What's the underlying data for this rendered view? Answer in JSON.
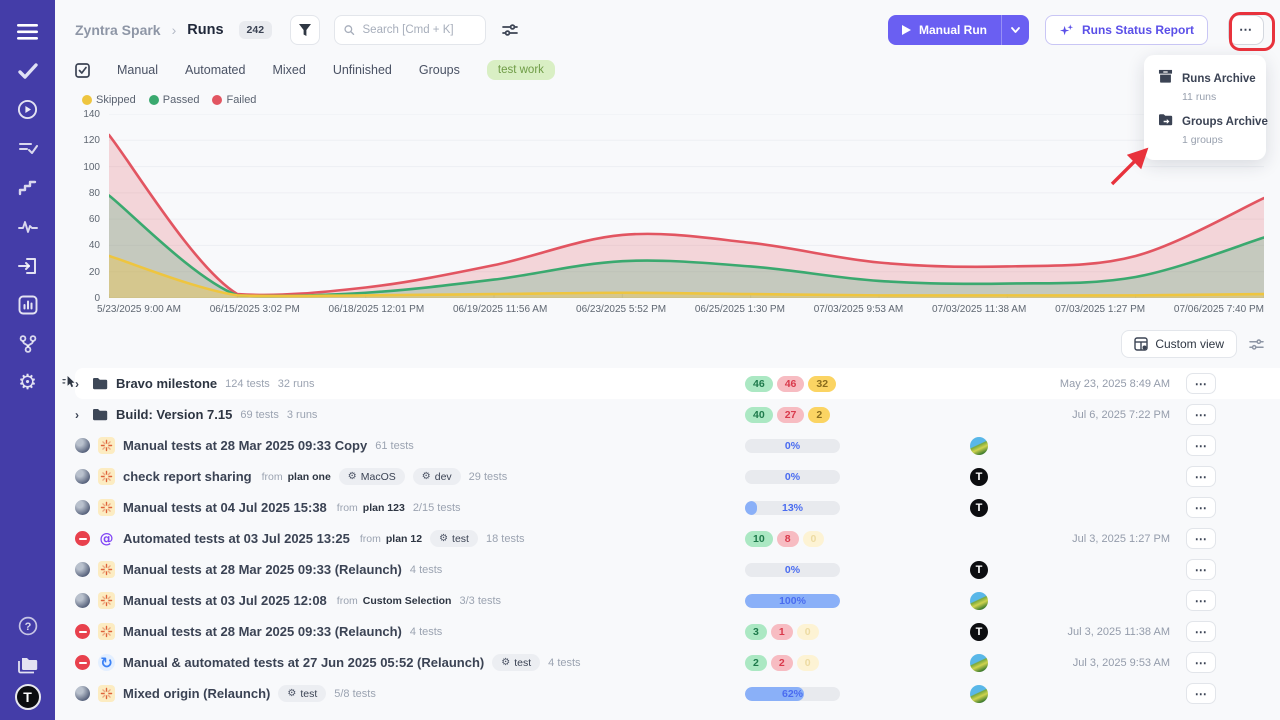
{
  "sidebar": {
    "icons": [
      "menu",
      "check",
      "play-circle",
      "list-check",
      "steps",
      "pulse",
      "import",
      "analytics",
      "branch",
      "settings",
      "help",
      "projects"
    ],
    "avatar_letter": "T"
  },
  "header": {
    "breadcrumb_project": "Zyntra Spark",
    "breadcrumb_separator": "›",
    "breadcrumb_page": "Runs",
    "count_badge": "242",
    "search_placeholder": "Search [Cmd + K]",
    "manual_run_label": "Manual Run",
    "runs_status_report_label": "Runs Status Report",
    "more_label": "⋯"
  },
  "dropdown": {
    "items": [
      {
        "icon": "archive-icon",
        "label": "Runs Archive",
        "sublabel": "11 runs"
      },
      {
        "icon": "folder-move-icon",
        "label": "Groups Archive",
        "sublabel": "1 groups"
      }
    ]
  },
  "tabs": [
    "Manual",
    "Automated",
    "Mixed",
    "Unfinished",
    "Groups"
  ],
  "tag_filter": "test work",
  "annotation": {
    "color": "#e8323c"
  },
  "chart_data": {
    "type": "area",
    "title": "",
    "legend_position": "top-left",
    "grid": "horizontal",
    "ylim": [
      0,
      140
    ],
    "y_ticks": [
      0,
      20,
      40,
      60,
      80,
      100,
      120,
      140
    ],
    "x_ticks": [
      "5/23/2025 9:00 AM",
      "06/15/2025 3:02 PM",
      "06/18/2025 12:01 PM",
      "06/19/2025 11:56 AM",
      "06/23/2025 5:52 PM",
      "06/25/2025 1:30 PM",
      "07/03/2025 9:53 AM",
      "07/03/2025 11:38 AM",
      "07/03/2025 1:27 PM",
      "07/06/2025 7:40 PM"
    ],
    "series": [
      {
        "name": "Skipped",
        "color": "#eec53f",
        "fill": "rgba(238,197,63,0.38)",
        "values": [
          32,
          2,
          2,
          3,
          4,
          3,
          2,
          2,
          2,
          3
        ]
      },
      {
        "name": "Passed",
        "color": "#3aa96f",
        "fill": "rgba(58,169,111,0.25)",
        "values": [
          78,
          2,
          4,
          14,
          28,
          24,
          13,
          11,
          16,
          46
        ]
      },
      {
        "name": "Failed",
        "color": "#e25561",
        "fill": "rgba(226,85,97,0.22)",
        "values": [
          124,
          3,
          8,
          25,
          48,
          42,
          27,
          24,
          32,
          76
        ]
      }
    ]
  },
  "toolbar": {
    "custom_view": "Custom view"
  },
  "table": {
    "from_label": "from"
  },
  "rows": [
    {
      "kind": "group",
      "pinned": true,
      "highlight": true,
      "title": "Bravo milestone",
      "meta": [
        "124 tests",
        "32 runs"
      ],
      "badges": {
        "passed": 46,
        "failed": 46,
        "skipped": 32
      },
      "date": "May 23, 2025 8:49 AM"
    },
    {
      "kind": "group",
      "title": "Build: Version 7.15",
      "meta": [
        "69 tests",
        "3 runs"
      ],
      "badges": {
        "passed": 40,
        "failed": 27,
        "skipped": 2
      },
      "date": "Jul 6, 2025 7:22 PM"
    },
    {
      "kind": "run",
      "status": "pending",
      "type": "manual",
      "title": "Manual tests at 28 Mar 2025 09:33 Copy",
      "meta": [
        "61 tests"
      ],
      "progress": 0,
      "avatar": "photo"
    },
    {
      "kind": "run",
      "status": "pending",
      "type": "manual",
      "title": "check report sharing",
      "from": "plan one",
      "tags": [
        "MacOS",
        "dev"
      ],
      "meta": [
        "29 tests"
      ],
      "progress": 0,
      "avatar": "t"
    },
    {
      "kind": "run",
      "status": "pending",
      "type": "manual",
      "title": "Manual tests at 04 Jul 2025 15:38",
      "from": "plan 123",
      "meta": [
        "2/15 tests"
      ],
      "progress": 13,
      "avatar": "t"
    },
    {
      "kind": "run",
      "status": "stopped",
      "type": "automated",
      "title": "Automated tests at 03 Jul 2025 13:25",
      "from": "plan 12",
      "tags": [
        "test"
      ],
      "meta": [
        "18 tests"
      ],
      "badges": {
        "passed": 10,
        "failed": 8,
        "skipped": 0
      },
      "date": "Jul 3, 2025 1:27 PM"
    },
    {
      "kind": "run",
      "status": "pending",
      "type": "manual",
      "title": "Manual tests at 28 Mar 2025 09:33 (Relaunch)",
      "meta": [
        "4 tests"
      ],
      "progress": 0,
      "avatar": "t"
    },
    {
      "kind": "run",
      "status": "pending",
      "type": "manual",
      "title": "Manual tests at 03 Jul 2025 12:08",
      "from": "Custom Selection",
      "meta": [
        "3/3 tests"
      ],
      "progress": 100,
      "avatar": "photo"
    },
    {
      "kind": "run",
      "status": "stopped",
      "type": "manual",
      "title": "Manual tests at 28 Mar 2025 09:33 (Relaunch)",
      "meta": [
        "4 tests"
      ],
      "badges": {
        "passed": 3,
        "failed": 1,
        "skipped": 0
      },
      "date": "Jul 3, 2025 11:38 AM",
      "avatar": "t"
    },
    {
      "kind": "run",
      "status": "stopped",
      "type": "mixed",
      "title": "Manual & automated tests at 27 Jun 2025 05:52 (Relaunch)",
      "tags": [
        "test"
      ],
      "meta": [
        "4 tests"
      ],
      "badges": {
        "passed": 2,
        "failed": 2,
        "skipped": 0
      },
      "date": "Jul 3, 2025 9:53 AM",
      "avatar": "photo"
    },
    {
      "kind": "run",
      "status": "pending",
      "type": "manual",
      "title": "Mixed origin (Relaunch)",
      "tags": [
        "test"
      ],
      "meta": [
        "5/8 tests"
      ],
      "progress": 62,
      "avatar": "photo"
    }
  ]
}
